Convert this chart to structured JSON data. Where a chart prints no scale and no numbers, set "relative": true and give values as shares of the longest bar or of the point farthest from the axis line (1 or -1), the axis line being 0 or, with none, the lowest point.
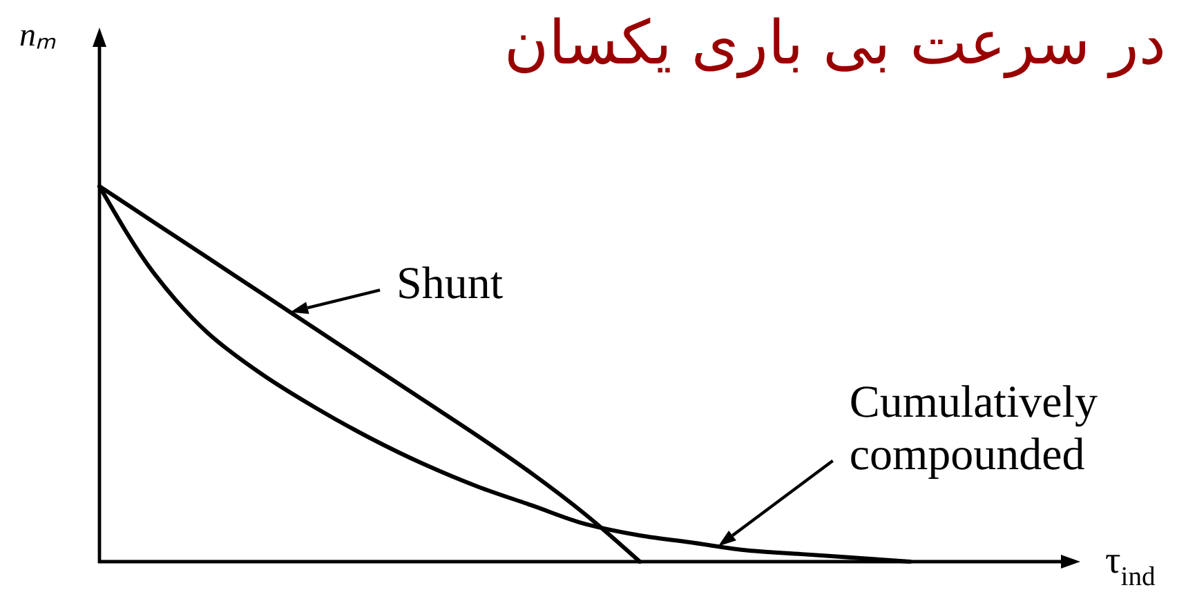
{
  "chart_data": {
    "type": "line",
    "title": "در سرعت بی باری یکسان",
    "xlabel": "τ$_{ind}$",
    "ylabel": "nₘ",
    "relative": true,
    "categories": [
      null,
      null,
      null,
      null,
      null,
      null,
      null,
      null,
      null,
      null,
      null,
      null,
      null,
      null,
      null,
      null
    ],
    "series": [
      {
        "name": "Shunt",
        "color": "#000000",
        "values": [
          1,
          0.905,
          0.81,
          0.715,
          0.62,
          0.525,
          0.43,
          0.335,
          0.235,
          0.125,
          0,
          null,
          null,
          null,
          null,
          null
        ]
      },
      {
        "name": "Cumulatively compounded",
        "color": "#000000",
        "values": [
          1,
          0.77,
          0.61,
          0.5,
          0.41,
          0.33,
          0.26,
          0.2,
          0.15,
          0.1,
          0.07,
          0.05,
          0.03,
          0.02,
          0.01,
          0
        ]
      }
    ]
  }
}
